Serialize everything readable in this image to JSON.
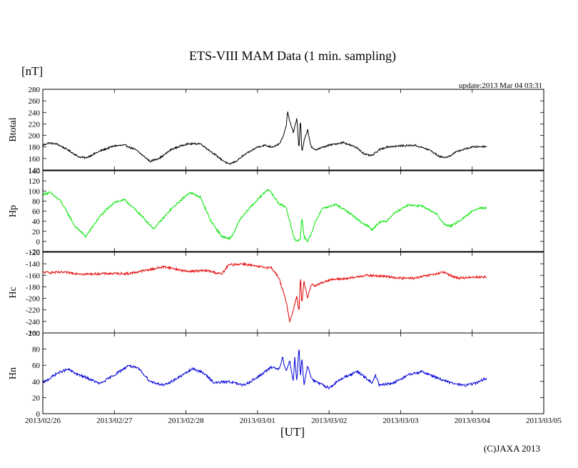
{
  "page": {
    "title": "ETS-VIII MAM Data (1 min. sampling)",
    "unit_label": "[nT]",
    "x_axis_label": "[UT]",
    "update_text": "update:2013 Mar 04 03:31",
    "copyright": "(C)JAXA 2013"
  },
  "chart_data": {
    "type": "line",
    "x_unit": "days since 2013/02/26 00:00 UT",
    "x_tick_labels": [
      "2013/02/26",
      "2013/02/27",
      "2013/02/28",
      "2013/03/01",
      "2013/03/02",
      "2013/03/03",
      "2013/03/04",
      "2013/03/05"
    ],
    "x_range": [
      0,
      7
    ],
    "panels": [
      {
        "name": "Btotal",
        "color": "#000000",
        "ylim": [
          140,
          280
        ],
        "y_ticks": [
          140,
          160,
          180,
          200,
          220,
          240,
          260,
          280
        ],
        "noise": 1.5,
        "x": [
          0,
          0.08,
          0.2,
          0.35,
          0.5,
          0.6,
          0.8,
          1.0,
          1.15,
          1.3,
          1.5,
          1.65,
          1.8,
          2.0,
          2.2,
          2.35,
          2.5,
          2.6,
          2.7,
          2.8,
          3.0,
          3.1,
          3.2,
          3.3,
          3.35,
          3.4,
          3.42,
          3.45,
          3.5,
          3.55,
          3.58,
          3.6,
          3.62,
          3.65,
          3.7,
          3.75,
          3.8,
          4.0,
          4.2,
          4.4,
          4.5,
          4.6,
          4.7,
          4.8,
          5.0,
          5.2,
          5.4,
          5.55,
          5.65,
          5.8,
          6.0,
          6.2
        ],
        "y": [
          183,
          187,
          185,
          175,
          163,
          161,
          173,
          182,
          183,
          175,
          155,
          162,
          176,
          185,
          186,
          172,
          158,
          150,
          155,
          165,
          180,
          183,
          180,
          185,
          195,
          215,
          242,
          225,
          205,
          230,
          175,
          232,
          170,
          190,
          210,
          180,
          175,
          183,
          188,
          178,
          167,
          165,
          175,
          180,
          182,
          183,
          175,
          163,
          162,
          173,
          180,
          181
        ]
      },
      {
        "name": "Hp",
        "color": "#00e600",
        "ylim": [
          -20,
          140
        ],
        "y_ticks": [
          -20,
          0,
          20,
          40,
          60,
          80,
          100,
          120,
          140
        ],
        "noise": 2.0,
        "x": [
          0,
          0.1,
          0.25,
          0.45,
          0.6,
          0.8,
          1.0,
          1.15,
          1.35,
          1.55,
          1.8,
          2.05,
          2.2,
          2.35,
          2.5,
          2.6,
          2.65,
          2.75,
          2.9,
          3.05,
          3.15,
          3.2,
          3.3,
          3.4,
          3.45,
          3.5,
          3.55,
          3.6,
          3.62,
          3.65,
          3.7,
          3.75,
          3.8,
          3.9,
          4.1,
          4.3,
          4.45,
          4.55,
          4.6,
          4.7,
          4.8,
          4.9,
          5.1,
          5.3,
          5.5,
          5.6,
          5.7,
          5.9,
          6.0,
          6.1,
          6.2
        ],
        "y": [
          93,
          97,
          80,
          30,
          10,
          50,
          78,
          82,
          55,
          25,
          65,
          97,
          88,
          40,
          10,
          5,
          12,
          42,
          68,
          90,
          104,
          95,
          75,
          68,
          40,
          10,
          0,
          5,
          50,
          10,
          0,
          15,
          35,
          65,
          73,
          55,
          38,
          30,
          23,
          38,
          40,
          55,
          72,
          70,
          55,
          35,
          30,
          48,
          60,
          67,
          66
        ]
      },
      {
        "name": "Hc",
        "color": "#e60000",
        "ylim": [
          -260,
          -120
        ],
        "y_ticks": [
          -260,
          -240,
          -220,
          -200,
          -180,
          -160,
          -140,
          -120
        ],
        "noise": 2.0,
        "x": [
          0,
          0.3,
          0.6,
          0.9,
          1.2,
          1.5,
          1.7,
          2.0,
          2.3,
          2.5,
          2.6,
          2.8,
          3.0,
          3.2,
          3.3,
          3.35,
          3.4,
          3.45,
          3.5,
          3.55,
          3.58,
          3.6,
          3.62,
          3.65,
          3.7,
          3.75,
          3.8,
          4.0,
          4.3,
          4.5,
          4.8,
          5.0,
          5.2,
          5.4,
          5.6,
          5.8,
          6.0,
          6.2
        ],
        "y": [
          -155,
          -155,
          -158,
          -157,
          -157,
          -150,
          -145,
          -153,
          -152,
          -158,
          -142,
          -140,
          -145,
          -147,
          -165,
          -185,
          -205,
          -240,
          -220,
          -195,
          -225,
          -160,
          -210,
          -170,
          -200,
          -175,
          -178,
          -168,
          -165,
          -160,
          -162,
          -165,
          -165,
          -160,
          -155,
          -165,
          -163,
          -163
        ]
      },
      {
        "name": "Hn",
        "color": "#0000d8",
        "ylim": [
          0,
          100
        ],
        "y_ticks": [
          0,
          20,
          40,
          60,
          80,
          100
        ],
        "noise": 1.6,
        "x": [
          0,
          0.2,
          0.35,
          0.5,
          0.6,
          0.8,
          1.0,
          1.2,
          1.35,
          1.5,
          1.7,
          1.9,
          2.1,
          2.25,
          2.4,
          2.6,
          2.8,
          3.0,
          3.2,
          3.3,
          3.35,
          3.4,
          3.45,
          3.5,
          3.52,
          3.55,
          3.58,
          3.6,
          3.62,
          3.65,
          3.7,
          3.75,
          3.8,
          4.0,
          4.2,
          4.4,
          4.5,
          4.6,
          4.65,
          4.7,
          4.9,
          5.1,
          5.3,
          5.5,
          5.7,
          5.9,
          6.05,
          6.2
        ],
        "y": [
          38,
          50,
          55,
          48,
          45,
          37,
          48,
          60,
          55,
          40,
          35,
          45,
          56,
          50,
          38,
          40,
          35,
          45,
          58,
          55,
          70,
          52,
          65,
          40,
          70,
          40,
          85,
          45,
          70,
          35,
          60,
          45,
          40,
          32,
          45,
          52,
          45,
          38,
          48,
          35,
          38,
          48,
          52,
          45,
          38,
          35,
          38,
          44
        ]
      }
    ]
  }
}
